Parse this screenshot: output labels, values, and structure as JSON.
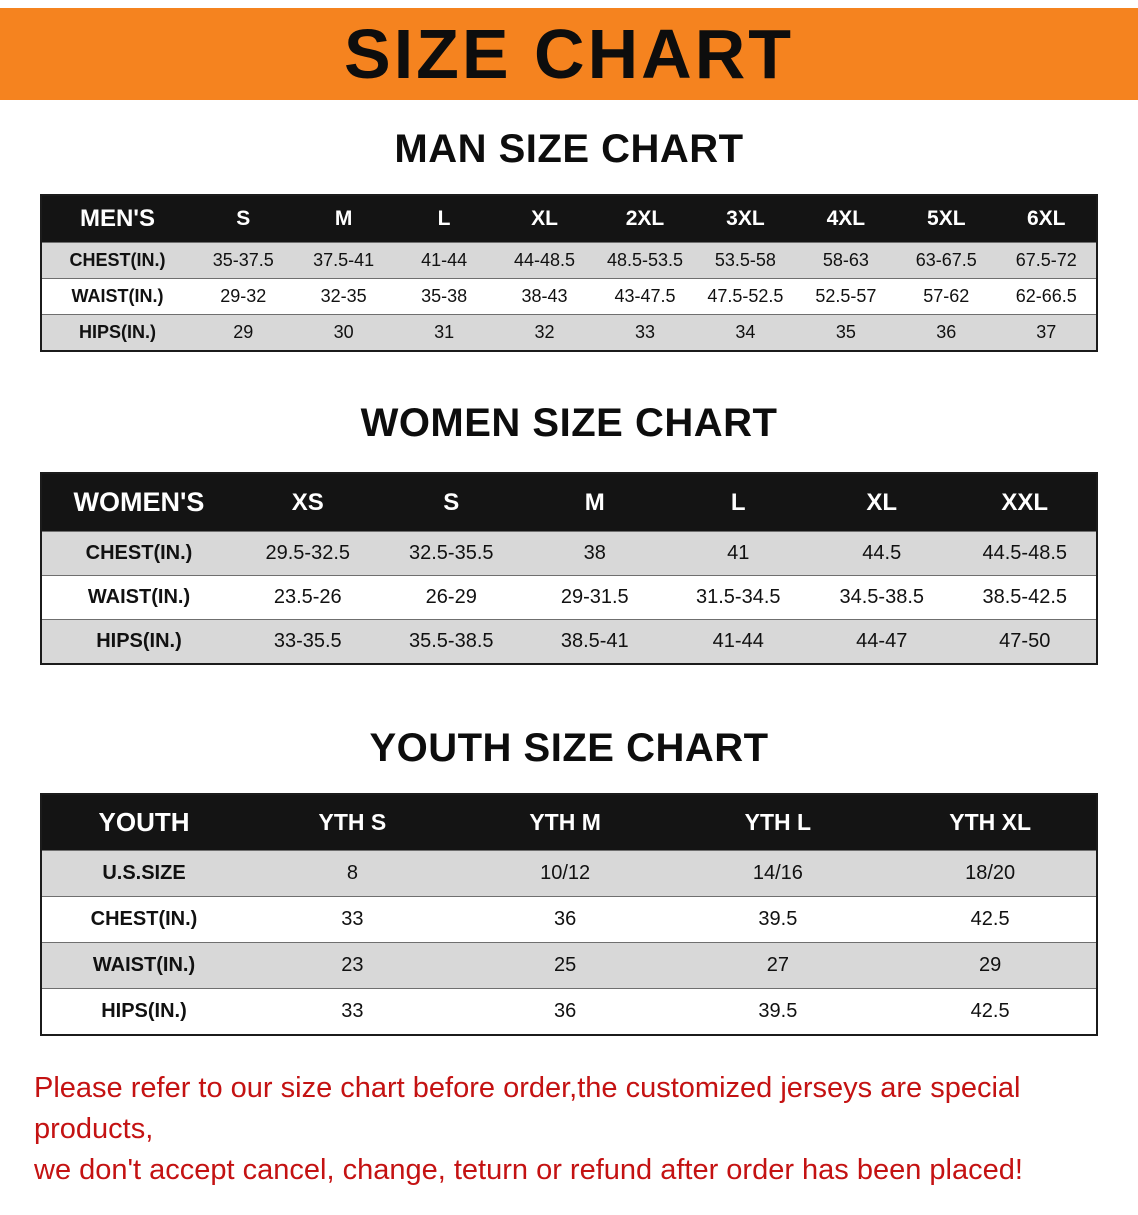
{
  "banner": {
    "title": "SIZE CHART"
  },
  "colors": {
    "banner_bg": "#F5831F",
    "table_header_bg": "#141414",
    "row_gray": "#D8D8D8",
    "disclaimer_red": "#C41212"
  },
  "sections": [
    {
      "heading": "MAN SIZE CHART",
      "table": {
        "header": [
          "MEN'S",
          "S",
          "M",
          "L",
          "XL",
          "2XL",
          "3XL",
          "4XL",
          "5XL",
          "6XL"
        ],
        "rows": [
          [
            "CHEST(IN.)",
            "35-37.5",
            "37.5-41",
            "41-44",
            "44-48.5",
            "48.5-53.5",
            "53.5-58",
            "58-63",
            "63-67.5",
            "67.5-72"
          ],
          [
            "WAIST(IN.)",
            "29-32",
            "32-35",
            "35-38",
            "38-43",
            "43-47.5",
            "47.5-52.5",
            "52.5-57",
            "57-62",
            "62-66.5"
          ],
          [
            "HIPS(IN.)",
            "29",
            "30",
            "31",
            "32",
            "33",
            "34",
            "35",
            "36",
            "37"
          ]
        ]
      }
    },
    {
      "heading": "WOMEN SIZE CHART",
      "table": {
        "header": [
          "WOMEN'S",
          "XS",
          "S",
          "M",
          "L",
          "XL",
          "XXL"
        ],
        "rows": [
          [
            "CHEST(IN.)",
            "29.5-32.5",
            "32.5-35.5",
            "38",
            "41",
            "44.5",
            "44.5-48.5"
          ],
          [
            "WAIST(IN.)",
            "23.5-26",
            "26-29",
            "29-31.5",
            "31.5-34.5",
            "34.5-38.5",
            "38.5-42.5"
          ],
          [
            "HIPS(IN.)",
            "33-35.5",
            "35.5-38.5",
            "38.5-41",
            "41-44",
            "44-47",
            "47-50"
          ]
        ]
      }
    },
    {
      "heading": "YOUTH SIZE CHART",
      "table": {
        "header": [
          "YOUTH",
          "YTH S",
          "YTH M",
          "YTH L",
          "YTH XL"
        ],
        "rows": [
          [
            "U.S.SIZE",
            "8",
            "10/12",
            "14/16",
            "18/20"
          ],
          [
            "CHEST(IN.)",
            "33",
            "36",
            "39.5",
            "42.5"
          ],
          [
            "WAIST(IN.)",
            "23",
            "25",
            "27",
            "29"
          ],
          [
            "HIPS(IN.)",
            "33",
            "36",
            "39.5",
            "42.5"
          ]
        ]
      }
    }
  ],
  "disclaimer": {
    "line1": "Please refer to our size chart before order,the customized jerseys are special products,",
    "line2": "we don't accept cancel, change, teturn or refund after order has been placed!"
  }
}
